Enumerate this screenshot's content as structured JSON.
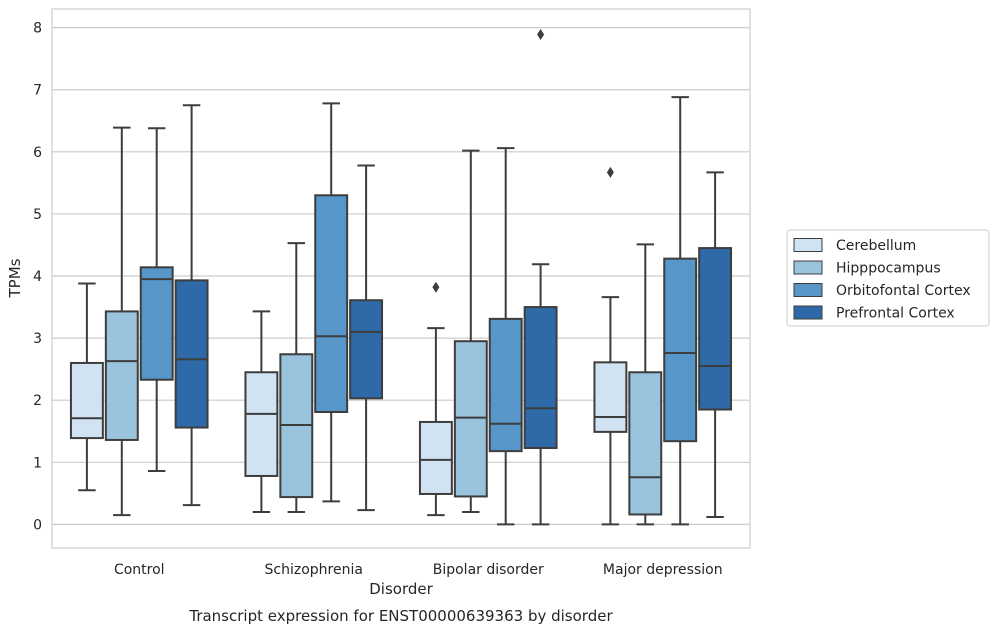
{
  "chart_data": {
    "type": "box",
    "title": "",
    "caption": "Transcript expression for ENST00000639363 by disorder",
    "xlabel": "Disorder",
    "ylabel": "TPMs",
    "ylim": [
      -0.38,
      8.3
    ],
    "yticks": [
      0,
      1,
      2,
      3,
      4,
      5,
      6,
      7,
      8
    ],
    "grid": "horizontal",
    "legend_position": "right",
    "categories": [
      "Control",
      "Schizophrenia",
      "Bipolar disorder",
      "Major depression"
    ],
    "series": [
      {
        "name": "Cerebellum",
        "color": "#d1e2f2",
        "boxes": [
          {
            "whislo": 0.55,
            "q1": 1.39,
            "med": 1.71,
            "q3": 2.6,
            "whishi": 3.88,
            "fliers": []
          },
          {
            "whislo": 0.2,
            "q1": 0.78,
            "med": 1.78,
            "q3": 2.45,
            "whishi": 3.43,
            "fliers": []
          },
          {
            "whislo": 0.15,
            "q1": 0.49,
            "med": 1.04,
            "q3": 1.65,
            "whishi": 3.16,
            "fliers": [
              3.82
            ]
          },
          {
            "whislo": 0.0,
            "q1": 1.49,
            "med": 1.73,
            "q3": 2.61,
            "whishi": 3.66,
            "fliers": [
              5.67
            ]
          }
        ]
      },
      {
        "name": "Hipppocampus",
        "color": "#9ac3de",
        "boxes": [
          {
            "whislo": 0.15,
            "q1": 1.36,
            "med": 2.63,
            "q3": 3.43,
            "whishi": 6.39,
            "fliers": []
          },
          {
            "whislo": 0.2,
            "q1": 0.44,
            "med": 1.6,
            "q3": 2.74,
            "whishi": 4.53,
            "fliers": []
          },
          {
            "whislo": 0.2,
            "q1": 0.45,
            "med": 1.72,
            "q3": 2.95,
            "whishi": 6.02,
            "fliers": []
          },
          {
            "whislo": 0.0,
            "q1": 0.16,
            "med": 0.76,
            "q3": 2.45,
            "whishi": 4.51,
            "fliers": []
          }
        ]
      },
      {
        "name": "Orbitofontal Cortex",
        "color": "#5696c9",
        "boxes": [
          {
            "whislo": 0.86,
            "q1": 2.33,
            "med": 3.95,
            "q3": 4.14,
            "whishi": 6.38,
            "fliers": []
          },
          {
            "whislo": 0.37,
            "q1": 1.81,
            "med": 3.03,
            "q3": 5.3,
            "whishi": 6.78,
            "fliers": []
          },
          {
            "whislo": 0.0,
            "q1": 1.18,
            "med": 1.62,
            "q3": 3.31,
            "whishi": 6.06,
            "fliers": []
          },
          {
            "whislo": 0.0,
            "q1": 1.34,
            "med": 2.76,
            "q3": 4.28,
            "whishi": 6.88,
            "fliers": []
          }
        ]
      },
      {
        "name": "Prefrontal Cortex",
        "color": "#2d6aa7",
        "boxes": [
          {
            "whislo": 0.31,
            "q1": 1.56,
            "med": 2.66,
            "q3": 3.93,
            "whishi": 6.75,
            "fliers": []
          },
          {
            "whislo": 0.23,
            "q1": 2.03,
            "med": 3.1,
            "q3": 3.61,
            "whishi": 5.78,
            "fliers": []
          },
          {
            "whislo": 0.0,
            "q1": 1.23,
            "med": 1.87,
            "q3": 3.5,
            "whishi": 4.19,
            "fliers": [
              7.89
            ]
          },
          {
            "whislo": 0.12,
            "q1": 1.85,
            "med": 2.55,
            "q3": 4.45,
            "whishi": 5.67,
            "fliers": []
          }
        ]
      }
    ]
  }
}
